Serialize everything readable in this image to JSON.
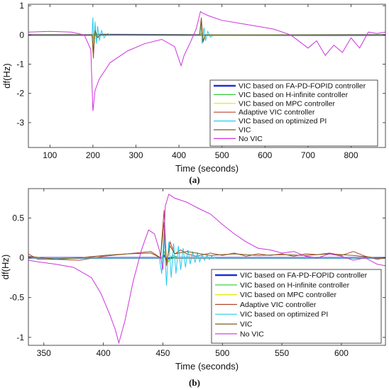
{
  "colors": {
    "VIC based on FA-PD-FOPID controller": "#1f2fd6",
    "VIC based on H-infinite controller": "#33cc33",
    "VIC based on MPC controller": "#e6e600",
    "Adaptive VIC controller": "#b5482a",
    "VIC based on optimized PI": "#22ccee",
    "VIC": "#7a5a14",
    "No VIC": "#cc33dd"
  },
  "chart_data": [
    {
      "type": "line",
      "caption": "(a)",
      "xlabel": "Time (seconds)",
      "ylabel": "df(Hz)",
      "xlim": [
        50,
        880
      ],
      "ylim": [
        -3.85,
        1.05
      ],
      "xticks": [
        100,
        200,
        300,
        400,
        500,
        600,
        700,
        800
      ],
      "yticks": [
        1,
        0,
        -1,
        -2,
        -3
      ],
      "grid": false,
      "legend": "bottom-right",
      "series": [
        {
          "name": "VIC based on FA-PD-FOPID controller",
          "x": [
            50,
            199,
            201,
            203,
            450,
            452,
            455,
            880
          ],
          "y": [
            0,
            0,
            -0.04,
            0.01,
            0,
            0.03,
            -0.01,
            0
          ]
        },
        {
          "name": "VIC based on H-infinite controller",
          "x": [
            50,
            199,
            201,
            204,
            208,
            215,
            449,
            452,
            456,
            462,
            880
          ],
          "y": [
            0,
            0,
            -0.15,
            0.08,
            -0.04,
            0,
            0,
            0.08,
            -0.05,
            0,
            0
          ]
        },
        {
          "name": "VIC based on MPC controller",
          "x": [
            50,
            199,
            201,
            204,
            209,
            449,
            452,
            457,
            880
          ],
          "y": [
            0,
            0,
            -0.1,
            0.05,
            0,
            0,
            0.05,
            -0.02,
            0
          ]
        },
        {
          "name": "Adaptive VIC controller",
          "x": [
            50,
            198,
            201,
            205,
            210,
            218,
            448,
            452,
            456,
            462,
            880
          ],
          "y": [
            0,
            0,
            -0.8,
            0.2,
            -0.1,
            0,
            0,
            0.6,
            -0.25,
            0,
            0
          ]
        },
        {
          "name": "VIC based on optimized PI",
          "x": [
            50,
            198,
            200,
            202,
            205,
            208,
            211,
            215,
            220,
            226,
            234,
            242,
            448,
            451,
            454,
            458,
            462,
            467,
            473,
            480,
            880
          ],
          "y": [
            0,
            0,
            0.6,
            -0.5,
            0.45,
            -0.3,
            0.3,
            -0.2,
            0.15,
            -0.1,
            0.05,
            0,
            0,
            0.35,
            -0.3,
            0.25,
            -0.2,
            0.12,
            -0.08,
            0,
            0
          ]
        },
        {
          "name": "VIC",
          "x": [
            50,
            198,
            201,
            205,
            210,
            218,
            448,
            452,
            456,
            462,
            880
          ],
          "y": [
            0,
            0,
            -0.6,
            0.15,
            -0.08,
            0,
            0,
            0.5,
            -0.2,
            0,
            0
          ]
        },
        {
          "name": "No VIC",
          "x": [
            50,
            100,
            150,
            180,
            195,
            200,
            205,
            215,
            240,
            280,
            320,
            360,
            390,
            405,
            412,
            425,
            440,
            450,
            455,
            470,
            500,
            540,
            580,
            620,
            660,
            700,
            720,
            740,
            760,
            780,
            800,
            820,
            840,
            860,
            880
          ],
          "y": [
            0.1,
            0.12,
            0.1,
            0.0,
            -0.5,
            -2.6,
            -1.9,
            -1.5,
            -0.95,
            -0.55,
            -0.3,
            -0.15,
            -0.4,
            -1.05,
            -0.7,
            -0.3,
            0.2,
            0.8,
            0.75,
            0.65,
            0.5,
            0.4,
            0.3,
            0.2,
            0.0,
            -0.45,
            -0.2,
            -0.7,
            -0.35,
            -0.6,
            -0.1,
            -0.45,
            0.1,
            0.05,
            0.1
          ]
        }
      ]
    },
    {
      "type": "line",
      "caption": "(b)",
      "xlabel": "Time (seconds)",
      "ylabel": "df(Hz)",
      "xlim": [
        337,
        637
      ],
      "ylim": [
        -1.1,
        0.87
      ],
      "xticks": [
        350,
        400,
        450,
        500,
        550,
        600
      ],
      "yticks": [
        0.5,
        0,
        -0.5,
        -1
      ],
      "grid": false,
      "legend": "bottom-right",
      "series": [
        {
          "name": "VIC based on FA-PD-FOPID controller",
          "x": [
            337,
            449,
            451,
            453,
            456,
            637
          ],
          "y": [
            0,
            0,
            0.03,
            -0.02,
            0,
            0
          ]
        },
        {
          "name": "VIC based on H-infinite controller",
          "x": [
            337,
            449,
            451,
            454,
            458,
            464,
            637
          ],
          "y": [
            0,
            0,
            0.08,
            -0.06,
            0.03,
            0,
            0
          ]
        },
        {
          "name": "VIC based on MPC controller",
          "x": [
            337,
            449,
            451,
            455,
            460,
            637
          ],
          "y": [
            0,
            0,
            0.05,
            -0.03,
            0,
            0
          ]
        },
        {
          "name": "Adaptive VIC controller",
          "x": [
            337,
            345,
            360,
            380,
            400,
            420,
            440,
            448,
            451,
            453,
            456,
            460,
            465,
            470,
            478,
            490,
            500,
            510,
            520,
            530,
            540,
            550,
            560,
            570,
            580,
            590,
            600,
            610,
            620,
            630,
            637
          ],
          "y": [
            0.05,
            -0.02,
            -0.02,
            -0.03,
            0.02,
            0.05,
            0.08,
            0.0,
            0.6,
            -0.1,
            0.2,
            0.05,
            0.1,
            0.05,
            0.02,
            0.06,
            0.03,
            0.06,
            0.02,
            0.05,
            0.03,
            0.05,
            0.02,
            0.05,
            0.04,
            0.06,
            0.03,
            0.08,
            0.02,
            -0.02,
            0.0
          ]
        },
        {
          "name": "VIC based on optimized PI",
          "x": [
            337,
            447,
            449,
            451,
            453,
            455,
            457,
            459,
            461,
            463,
            465,
            467,
            469,
            471,
            473,
            475,
            477,
            479,
            481,
            483,
            485,
            487,
            489,
            491,
            493,
            495,
            637
          ],
          "y": [
            0,
            0,
            -0.2,
            0.3,
            -0.35,
            0.2,
            -0.25,
            0.18,
            -0.2,
            0.15,
            -0.15,
            0.12,
            -0.12,
            0.1,
            -0.08,
            0.08,
            -0.06,
            0.06,
            -0.05,
            0.04,
            -0.03,
            0.03,
            -0.02,
            0.02,
            -0.01,
            0,
            0
          ]
        },
        {
          "name": "VIC",
          "x": [
            337,
            360,
            380,
            400,
            420,
            440,
            448,
            451,
            453,
            456,
            460,
            470,
            490,
            510,
            530,
            550,
            570,
            590,
            610,
            630,
            637
          ],
          "y": [
            0.02,
            -0.02,
            0.0,
            0.03,
            0.05,
            0.06,
            0.0,
            0.45,
            -0.05,
            0.15,
            0.05,
            0.08,
            0.03,
            0.05,
            0.03,
            0.04,
            0.03,
            0.05,
            0.03,
            0.0,
            0.0
          ]
        },
        {
          "name": "No VIC",
          "x": [
            337,
            345,
            360,
            375,
            390,
            398,
            405,
            410,
            413,
            418,
            425,
            432,
            438,
            443,
            447,
            450,
            452,
            455,
            460,
            470,
            480,
            490,
            500,
            510,
            520,
            530,
            540,
            550,
            560,
            570,
            580,
            590,
            600,
            610,
            620,
            630,
            637
          ],
          "y": [
            -0.03,
            -0.05,
            -0.08,
            -0.12,
            -0.25,
            -0.45,
            -0.7,
            -0.9,
            -1.07,
            -0.8,
            -0.3,
            0.1,
            0.35,
            0.3,
            0.1,
            -0.15,
            0.65,
            0.8,
            0.75,
            0.7,
            0.62,
            0.55,
            0.42,
            0.3,
            0.2,
            0.12,
            0.1,
            0.06,
            0.08,
            0.02,
            0.0,
            0.05,
            0.02,
            -0.03,
            0.0,
            -0.08,
            -0.1
          ]
        }
      ]
    }
  ]
}
